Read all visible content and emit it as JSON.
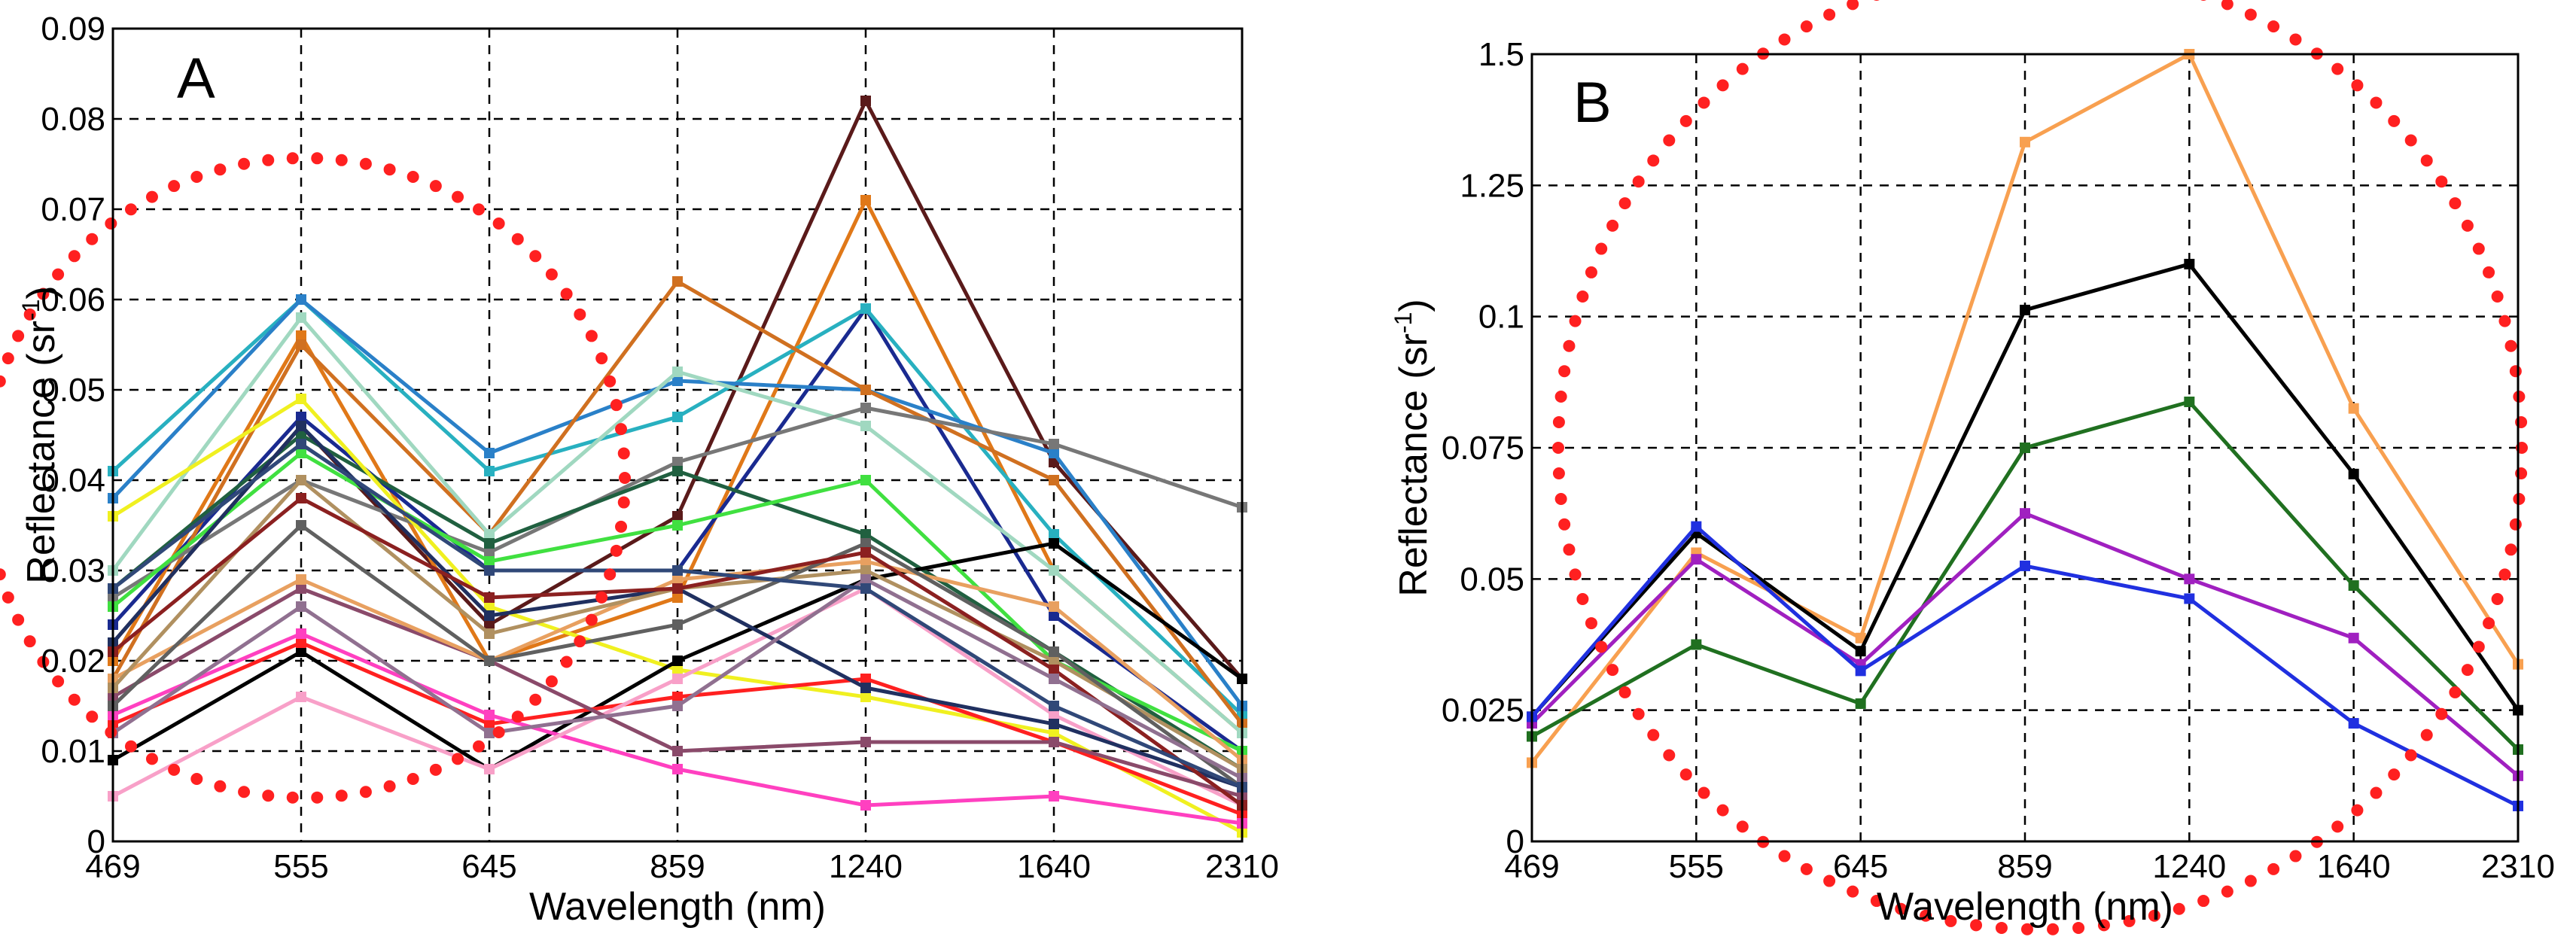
{
  "chart_data": [
    {
      "type": "line",
      "panel_label": "A",
      "x": [
        "469",
        "555",
        "645",
        "859",
        "1240",
        "1640",
        "2310"
      ],
      "x_ticks": [
        "469",
        "555",
        "645",
        "859",
        "1240",
        "1640",
        "2310"
      ],
      "y_ticks": [
        "0",
        "0.01",
        "0.02",
        "0.03",
        "0.04",
        "0.05",
        "0.06",
        "0.07",
        "0.08",
        "0.09"
      ],
      "ylim": [
        0,
        0.09
      ],
      "xlabel": "Wavelength (nm)",
      "ylabel": "Reflectance (sr",
      "ylabel_sup": "-1",
      "ylabel_close": ")",
      "grid": true,
      "annotation": "red dotted circle around 555 nm",
      "series": [
        {
          "color": "#5a1a1a",
          "values": [
            0.022,
            0.046,
            0.024,
            0.036,
            0.082,
            0.042,
            0.018
          ]
        },
        {
          "color": "#e07818",
          "values": [
            0.02,
            0.056,
            0.02,
            0.027,
            0.071,
            0.03,
            0.012
          ]
        },
        {
          "color": "#1a2a90",
          "values": [
            0.024,
            0.047,
            0.03,
            0.03,
            0.059,
            0.025,
            0.01
          ]
        },
        {
          "color": "#28b0c0",
          "values": [
            0.041,
            0.06,
            0.041,
            0.047,
            0.059,
            0.034,
            0.014
          ]
        },
        {
          "color": "#2a80c8",
          "values": [
            0.038,
            0.06,
            0.043,
            0.051,
            0.05,
            0.043,
            0.015
          ]
        },
        {
          "color": "#d07020",
          "values": [
            0.018,
            0.055,
            0.034,
            0.062,
            0.05,
            0.04,
            0.013
          ]
        },
        {
          "color": "#a0d8c0",
          "values": [
            0.03,
            0.058,
            0.034,
            0.052,
            0.046,
            0.03,
            0.012
          ]
        },
        {
          "color": "#777777",
          "values": [
            0.027,
            0.04,
            0.032,
            0.042,
            0.048,
            0.044,
            0.037
          ]
        },
        {
          "color": "#206040",
          "values": [
            0.028,
            0.045,
            0.033,
            0.041,
            0.034,
            0.021,
            0.008
          ]
        },
        {
          "color": "#40e040",
          "values": [
            0.026,
            0.043,
            0.031,
            0.035,
            0.04,
            0.02,
            0.01
          ]
        },
        {
          "color": "#f0f020",
          "values": [
            0.036,
            0.049,
            0.026,
            0.019,
            0.016,
            0.012,
            0.001
          ]
        },
        {
          "color": "#000000",
          "values": [
            0.009,
            0.021,
            0.008,
            0.02,
            0.029,
            0.033,
            0.018
          ]
        },
        {
          "color": "#ff2020",
          "values": [
            0.013,
            0.022,
            0.013,
            0.016,
            0.018,
            0.011,
            0.003
          ]
        },
        {
          "color": "#ff40c0",
          "values": [
            0.014,
            0.023,
            0.014,
            0.008,
            0.004,
            0.005,
            0.002
          ]
        },
        {
          "color": "#f8a0c8",
          "values": [
            0.005,
            0.016,
            0.008,
            0.018,
            0.028,
            0.014,
            0.004
          ]
        },
        {
          "color": "#8a4a6a",
          "values": [
            0.016,
            0.028,
            0.02,
            0.01,
            0.011,
            0.011,
            0.005
          ]
        },
        {
          "color": "#e8a060",
          "values": [
            0.018,
            0.029,
            0.02,
            0.029,
            0.031,
            0.026,
            0.009
          ]
        },
        {
          "color": "#203060",
          "values": [
            0.022,
            0.046,
            0.025,
            0.028,
            0.017,
            0.013,
            0.006
          ]
        },
        {
          "color": "#b09060",
          "values": [
            0.017,
            0.04,
            0.023,
            0.028,
            0.03,
            0.02,
            0.008
          ]
        },
        {
          "color": "#606060",
          "values": [
            0.015,
            0.035,
            0.02,
            0.024,
            0.033,
            0.021,
            0.006
          ]
        },
        {
          "color": "#8b2020",
          "values": [
            0.021,
            0.038,
            0.027,
            0.028,
            0.032,
            0.019,
            0.004
          ]
        },
        {
          "color": "#907090",
          "values": [
            0.012,
            0.026,
            0.012,
            0.015,
            0.029,
            0.018,
            0.007
          ]
        },
        {
          "color": "#304878",
          "values": [
            0.028,
            0.044,
            0.03,
            0.03,
            0.028,
            0.015,
            0.006
          ]
        }
      ]
    },
    {
      "type": "line",
      "panel_label": "B",
      "x": [
        "469",
        "555",
        "645",
        "859",
        "1240",
        "1640",
        "2310"
      ],
      "x_ticks": [
        "469",
        "555",
        "645",
        "859",
        "1240",
        "1640",
        "2310"
      ],
      "y_ticks": [
        "0",
        "0.025",
        "0.05",
        "0.075",
        "0.1",
        "1.25",
        "1.5"
      ],
      "ylim_index": [
        0,
        6
      ],
      "xlabel": "Wavelength (nm)",
      "ylabel": "Reflectance (sr",
      "ylabel_sup": "-1",
      "ylabel_close": ")",
      "grid": true,
      "annotation": "red dotted circle centred near 859–1240 nm",
      "series": [
        {
          "color": "#f8a050",
          "values_tick_units": [
            0.6,
            2.2,
            1.55,
            5.33,
            6.0,
            3.3,
            1.35
          ]
        },
        {
          "color": "#000000",
          "values_tick_units": [
            0.95,
            2.35,
            1.45,
            4.05,
            4.4,
            2.8,
            1.0
          ]
        },
        {
          "color": "#207020",
          "values_tick_units": [
            0.8,
            1.5,
            1.05,
            3.0,
            3.35,
            1.95,
            0.7
          ]
        },
        {
          "color": "#a020c0",
          "values_tick_units": [
            0.9,
            2.15,
            1.35,
            2.5,
            2.0,
            1.55,
            0.5
          ]
        },
        {
          "color": "#2030e0",
          "values_tick_units": [
            0.95,
            2.4,
            1.3,
            2.1,
            1.85,
            0.9,
            0.27
          ]
        }
      ]
    }
  ]
}
